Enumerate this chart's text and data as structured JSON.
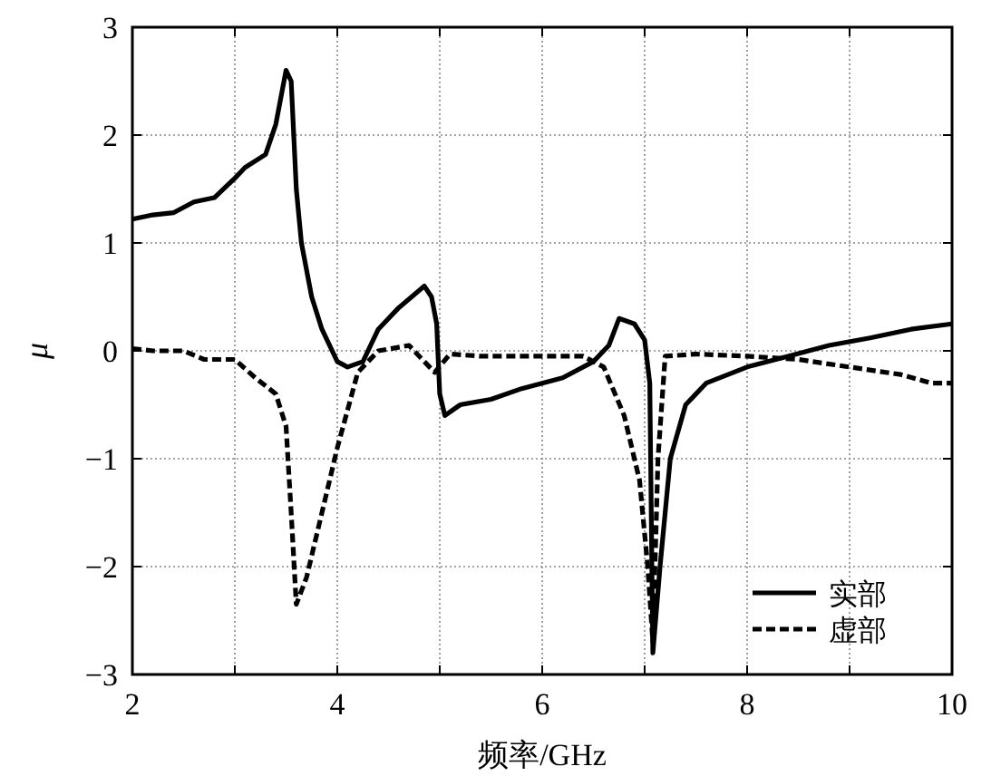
{
  "chart_data": {
    "type": "line",
    "xlabel": "频率/GHz",
    "ylabel": "μ",
    "xlim": [
      2,
      10
    ],
    "ylim": [
      -3,
      3
    ],
    "xticks": [
      2,
      {
        "value": 3,
        "label": null
      },
      4,
      {
        "value": 5,
        "label": null
      },
      6,
      {
        "value": 7,
        "label": null
      },
      8,
      {
        "value": 9,
        "label": null
      },
      10
    ],
    "yticks": [
      -3,
      -2,
      -1,
      0,
      1,
      2,
      3
    ],
    "grid": true,
    "legend": "bottom right",
    "marker": "none",
    "series": [
      {
        "name": "实部",
        "color": "#000000",
        "line_style": "solid",
        "x": [
          2.0,
          2.2,
          2.4,
          2.6,
          2.8,
          3.0,
          3.1,
          3.3,
          3.4,
          3.5,
          3.55,
          3.6,
          3.65,
          3.75,
          3.85,
          4.0,
          4.1,
          4.25,
          4.4,
          4.6,
          4.85,
          4.92,
          4.97,
          5.0,
          5.05,
          5.2,
          5.5,
          5.8,
          6.0,
          6.2,
          6.5,
          6.65,
          6.75,
          6.9,
          7.0,
          7.05,
          7.08,
          7.15,
          7.25,
          7.4,
          7.6,
          8.0,
          8.4,
          8.8,
          9.2,
          9.6,
          10.0
        ],
        "values": [
          1.22,
          1.26,
          1.28,
          1.38,
          1.42,
          1.6,
          1.7,
          1.82,
          2.1,
          2.6,
          2.5,
          1.5,
          1.0,
          0.5,
          0.2,
          -0.1,
          -0.15,
          -0.1,
          0.2,
          0.4,
          0.6,
          0.5,
          0.25,
          -0.4,
          -0.6,
          -0.5,
          -0.45,
          -0.35,
          -0.3,
          -0.25,
          -0.1,
          0.05,
          0.3,
          0.25,
          0.1,
          -0.3,
          -2.8,
          -2.0,
          -1.0,
          -0.5,
          -0.3,
          -0.15,
          -0.05,
          0.05,
          0.12,
          0.2,
          0.25
        ]
      },
      {
        "name": "虚部",
        "color": "#000000",
        "line_style": "dashed",
        "x": [
          2.0,
          2.2,
          2.5,
          2.7,
          3.0,
          3.2,
          3.4,
          3.5,
          3.55,
          3.6,
          3.7,
          3.85,
          4.0,
          4.2,
          4.4,
          4.7,
          4.8,
          4.95,
          5.1,
          5.4,
          6.0,
          6.4,
          6.6,
          6.8,
          6.95,
          7.03,
          7.08,
          7.13,
          7.2,
          7.5,
          8.0,
          8.5,
          9.0,
          9.5,
          9.8,
          10.0
        ],
        "values": [
          0.02,
          0.0,
          0.0,
          -0.08,
          -0.08,
          -0.25,
          -0.4,
          -0.7,
          -1.5,
          -2.35,
          -2.1,
          -1.5,
          -0.9,
          -0.2,
          0.0,
          0.05,
          -0.05,
          -0.2,
          -0.03,
          -0.05,
          -0.05,
          -0.05,
          -0.15,
          -0.6,
          -1.2,
          -2.0,
          -2.7,
          -1.0,
          -0.05,
          -0.03,
          -0.05,
          -0.08,
          -0.15,
          -0.22,
          -0.3,
          -0.3
        ]
      }
    ]
  }
}
